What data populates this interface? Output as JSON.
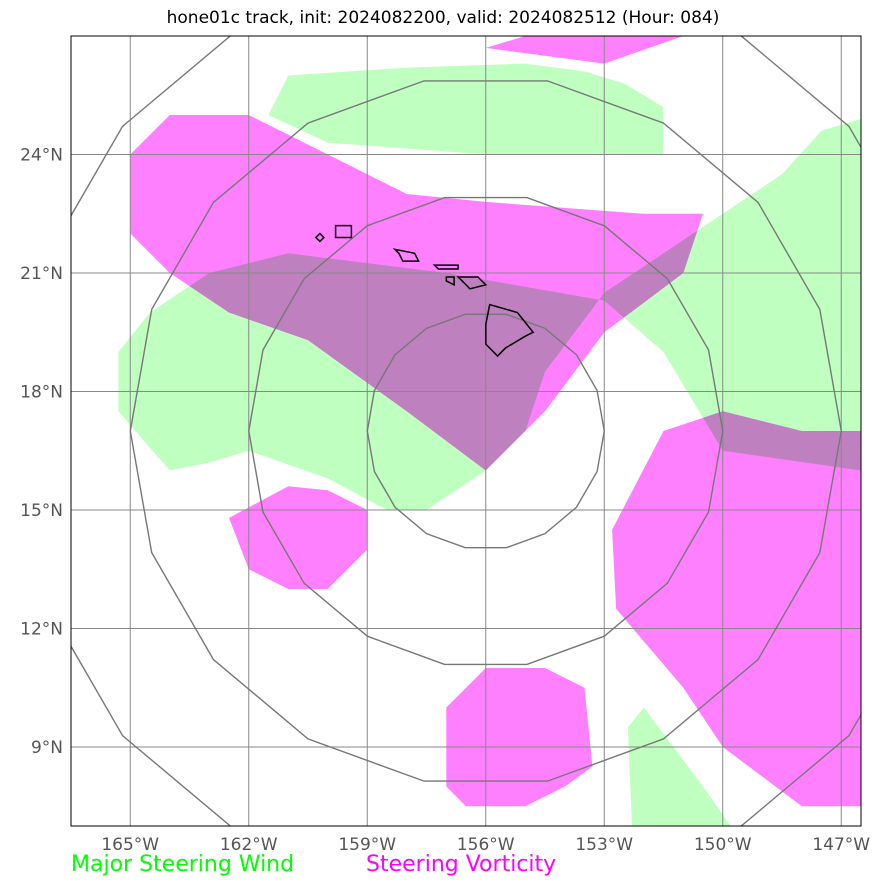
{
  "title": "hone01c track, init: 2024082200, valid: 2024082512 (Hour: 084)",
  "storm": "hone01c",
  "init": "2024082200",
  "valid": "2024082512",
  "forecast_hour": "084",
  "map": {
    "projection": "lat-lon",
    "lon_range": [
      -166.5,
      -146.5
    ],
    "lat_range": [
      7.0,
      27.0
    ],
    "lon_ticks": [
      {
        "value": -165,
        "label": "165°W"
      },
      {
        "value": -162,
        "label": "162°W"
      },
      {
        "value": -159,
        "label": "159°W"
      },
      {
        "value": -156,
        "label": "156°W"
      },
      {
        "value": -153,
        "label": "153°W"
      },
      {
        "value": -150,
        "label": "150°W"
      },
      {
        "value": -147,
        "label": "147°W"
      }
    ],
    "lat_ticks": [
      {
        "value": 24,
        "label": "24°N"
      },
      {
        "value": 21,
        "label": "21°N"
      },
      {
        "value": 18,
        "label": "18°N"
      },
      {
        "value": 15,
        "label": "15°N"
      },
      {
        "value": 12,
        "label": "12°N"
      },
      {
        "value": 9,
        "label": "9°N"
      }
    ],
    "range_rings": {
      "center": [
        -156.0,
        17.0
      ],
      "radii_deg": [
        3,
        6,
        9,
        12
      ]
    },
    "layers": {
      "wind": {
        "color": "#00ff00",
        "fill": "#bfffbf",
        "polygons": [
          [
            [
              -158.0,
              26.2
            ],
            [
              -155.0,
              26.3
            ],
            [
              -153.5,
              26.1
            ],
            [
              -152.5,
              25.8
            ],
            [
              -151.5,
              25.2
            ],
            [
              -151.5,
              24.0
            ],
            [
              -156.0,
              24.0
            ],
            [
              -160.0,
              24.3
            ],
            [
              -161.5,
              25.0
            ],
            [
              -161.0,
              26.0
            ]
          ],
          [
            [
              -146.5,
              24.9
            ],
            [
              -147.5,
              24.6
            ],
            [
              -148.5,
              23.5
            ],
            [
              -150.0,
              22.5
            ],
            [
              -151.5,
              21.5
            ],
            [
              -153.0,
              20.5
            ],
            [
              -154.5,
              18.5
            ],
            [
              -155.0,
              17.0
            ],
            [
              -156.0,
              16.0
            ],
            [
              -157.5,
              15.0
            ],
            [
              -158.5,
              15.0
            ],
            [
              -160.0,
              15.8
            ],
            [
              -162.0,
              16.5
            ],
            [
              -163.0,
              16.2
            ],
            [
              -164.0,
              16.0
            ],
            [
              -165.3,
              17.5
            ],
            [
              -165.3,
              19.0
            ],
            [
              -164.5,
              20.0
            ],
            [
              -163.0,
              21.0
            ],
            [
              -161.0,
              21.5
            ],
            [
              -157.0,
              21.0
            ],
            [
              -153.0,
              20.3
            ],
            [
              -151.5,
              19.0
            ],
            [
              -150.0,
              16.5
            ],
            [
              -146.5,
              16.0
            ]
          ],
          [
            [
              -152.0,
              10.0
            ],
            [
              -150.5,
              8.0
            ],
            [
              -149.8,
              7.0
            ],
            [
              -152.3,
              7.0
            ],
            [
              -152.4,
              9.5
            ]
          ]
        ]
      },
      "vorticity": {
        "color": "#ff00ff",
        "fill": "#ff80ff",
        "polygons": [
          [
            [
              -155.0,
              27.0
            ],
            [
              -151.0,
              27.0
            ],
            [
              -153.0,
              26.3
            ],
            [
              -156.0,
              26.7
            ]
          ],
          [
            [
              -162.0,
              25.0
            ],
            [
              -160.0,
              24.0
            ],
            [
              -158.0,
              23.0
            ],
            [
              -156.0,
              22.8
            ],
            [
              -152.0,
              22.5
            ],
            [
              -150.5,
              22.5
            ],
            [
              -151.0,
              21.0
            ],
            [
              -153.0,
              19.5
            ],
            [
              -154.5,
              17.5
            ],
            [
              -156.0,
              16.0
            ],
            [
              -158.0,
              17.5
            ],
            [
              -160.5,
              19.3
            ],
            [
              -162.5,
              20.0
            ],
            [
              -164.0,
              21.0
            ],
            [
              -165.0,
              22.0
            ],
            [
              -165.0,
              24.0
            ],
            [
              -164.0,
              25.0
            ]
          ],
          [
            [
              -162.5,
              14.8
            ],
            [
              -161.0,
              15.6
            ],
            [
              -160.0,
              15.5
            ],
            [
              -159.0,
              15.0
            ],
            [
              -159.0,
              14.0
            ],
            [
              -160.0,
              13.0
            ],
            [
              -161.0,
              13.0
            ],
            [
              -162.0,
              13.5
            ]
          ],
          [
            [
              -146.5,
              17.0
            ],
            [
              -148.0,
              17.0
            ],
            [
              -150.0,
              17.5
            ],
            [
              -151.5,
              17.0
            ],
            [
              -152.8,
              14.5
            ],
            [
              -152.7,
              12.5
            ],
            [
              -151.0,
              10.5
            ],
            [
              -150.0,
              9.0
            ],
            [
              -148.0,
              7.5
            ],
            [
              -146.5,
              7.5
            ]
          ],
          [
            [
              -156.0,
              11.0
            ],
            [
              -154.5,
              11.0
            ],
            [
              -153.5,
              10.5
            ],
            [
              -153.3,
              8.5
            ],
            [
              -154.0,
              8.0
            ],
            [
              -155.0,
              7.5
            ],
            [
              -156.5,
              7.5
            ],
            [
              -157.0,
              8.0
            ],
            [
              -157.0,
              10.0
            ]
          ]
        ]
      },
      "overlap_fill": "#bf80bf"
    },
    "land_outlines": [
      {
        "name": "Hawaii",
        "points": [
          [
            -155.9,
            20.2
          ],
          [
            -155.2,
            20.0
          ],
          [
            -154.8,
            19.5
          ],
          [
            -155.0,
            19.4
          ],
          [
            -155.5,
            19.1
          ],
          [
            -155.7,
            18.9
          ],
          [
            -156.0,
            19.2
          ],
          [
            -156.0,
            19.7
          ]
        ]
      },
      {
        "name": "Maui",
        "points": [
          [
            -156.7,
            20.9
          ],
          [
            -156.2,
            20.9
          ],
          [
            -156.0,
            20.7
          ],
          [
            -156.4,
            20.6
          ],
          [
            -156.6,
            20.8
          ]
        ]
      },
      {
        "name": "Molokai",
        "points": [
          [
            -157.3,
            21.2
          ],
          [
            -156.7,
            21.2
          ],
          [
            -156.7,
            21.1
          ],
          [
            -157.2,
            21.1
          ]
        ]
      },
      {
        "name": "Lanai",
        "points": [
          [
            -157.0,
            20.9
          ],
          [
            -156.8,
            20.9
          ],
          [
            -156.8,
            20.7
          ],
          [
            -157.0,
            20.8
          ]
        ]
      },
      {
        "name": "Oahu",
        "points": [
          [
            -158.3,
            21.6
          ],
          [
            -157.8,
            21.5
          ],
          [
            -157.7,
            21.3
          ],
          [
            -158.1,
            21.3
          ],
          [
            -158.2,
            21.5
          ]
        ]
      },
      {
        "name": "Kauai",
        "points": [
          [
            -159.8,
            22.2
          ],
          [
            -159.4,
            22.2
          ],
          [
            -159.4,
            21.9
          ],
          [
            -159.8,
            21.9
          ]
        ]
      },
      {
        "name": "Niihau",
        "points": [
          [
            -160.2,
            22.0
          ],
          [
            -160.1,
            21.9
          ],
          [
            -160.2,
            21.8
          ],
          [
            -160.3,
            21.9
          ]
        ]
      }
    ]
  },
  "legend": [
    {
      "label": "Major Steering Wind",
      "color": "#00ff00"
    },
    {
      "label": "Steering Vorticity",
      "color": "#ff00ff"
    }
  ]
}
